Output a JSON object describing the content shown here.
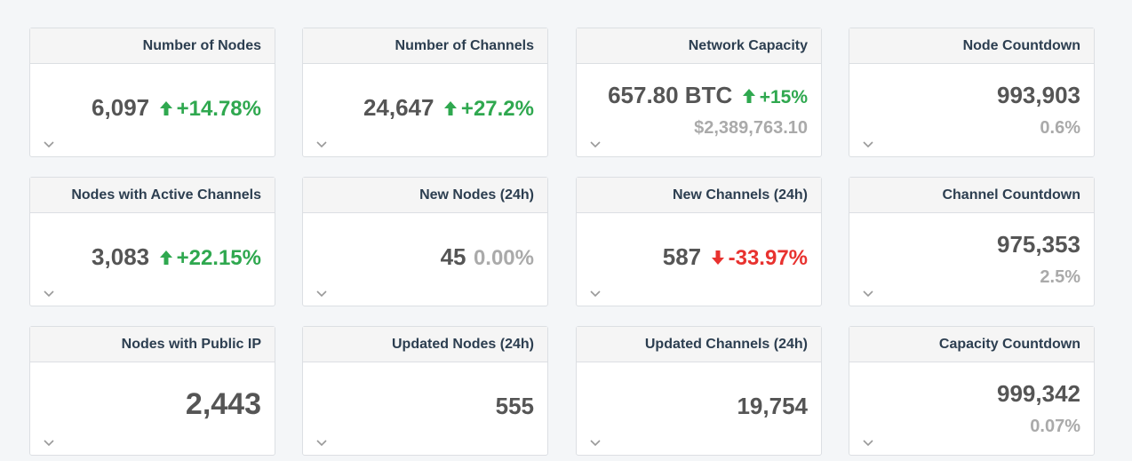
{
  "cards": [
    {
      "title": "Number of Nodes",
      "value": "6,097",
      "delta": "+14.78%",
      "trend": "up"
    },
    {
      "title": "Number of Channels",
      "value": "24,647",
      "delta": "+27.2%",
      "trend": "up"
    },
    {
      "title": "Network Capacity",
      "value": "657.80 BTC",
      "delta": "+15%",
      "trend": "up",
      "sub": "$2,389,763.10"
    },
    {
      "title": "Node Countdown",
      "value": "993,903",
      "sub": "0.6%"
    },
    {
      "title": "Nodes with Active Channels",
      "value": "3,083",
      "delta": "+22.15%",
      "trend": "up"
    },
    {
      "title": "New Nodes (24h)",
      "value": "45",
      "delta": "0.00%",
      "trend": "flat"
    },
    {
      "title": "New Channels (24h)",
      "value": "587",
      "delta": "-33.97%",
      "trend": "down"
    },
    {
      "title": "Channel Countdown",
      "value": "975,353",
      "sub": "2.5%"
    },
    {
      "title": "Nodes with Public IP",
      "value": "2,443"
    },
    {
      "title": "Updated Nodes (24h)",
      "value": "555"
    },
    {
      "title": "Updated Channels (24h)",
      "value": "19,754"
    },
    {
      "title": "Capacity Countdown",
      "value": "999,342",
      "sub": "0.07%"
    }
  ],
  "icons": {
    "up": "arrow-up-icon",
    "down": "arrow-down-icon",
    "expand": "chevron-down-icon"
  },
  "colors": {
    "up": "#2fa84f",
    "down": "#e8322f",
    "neutral": "#aaaaaa",
    "value": "#555555",
    "header_text": "#2c3e50"
  }
}
